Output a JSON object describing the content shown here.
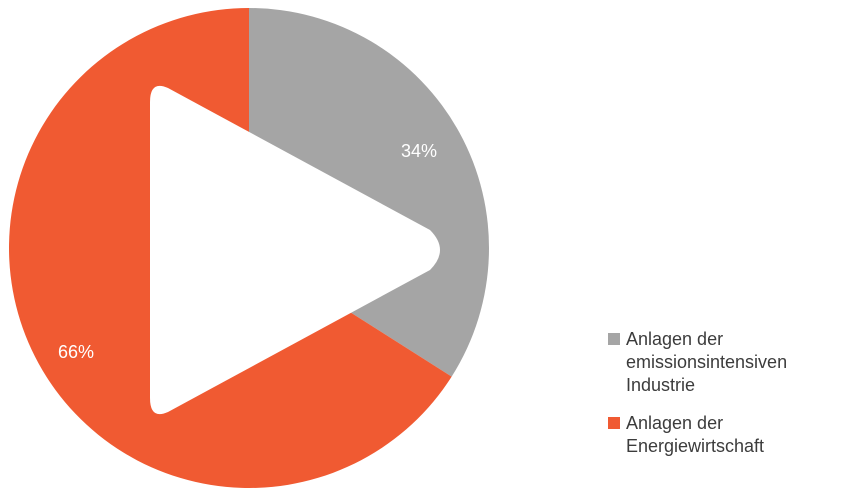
{
  "chart_data": {
    "type": "pie",
    "title": "",
    "slices": [
      {
        "name": "Anlagen der emissionsintensiven Industrie",
        "value": 34,
        "label": "34%",
        "color": "#a5a5a5"
      },
      {
        "name": "Anlagen der Energiewirtschaft",
        "value": 66,
        "label": "66%",
        "color": "#f05a32"
      }
    ],
    "legend_position": "bottom-right"
  },
  "overlay": {
    "icon": "play-icon",
    "color": "#ffffff"
  }
}
